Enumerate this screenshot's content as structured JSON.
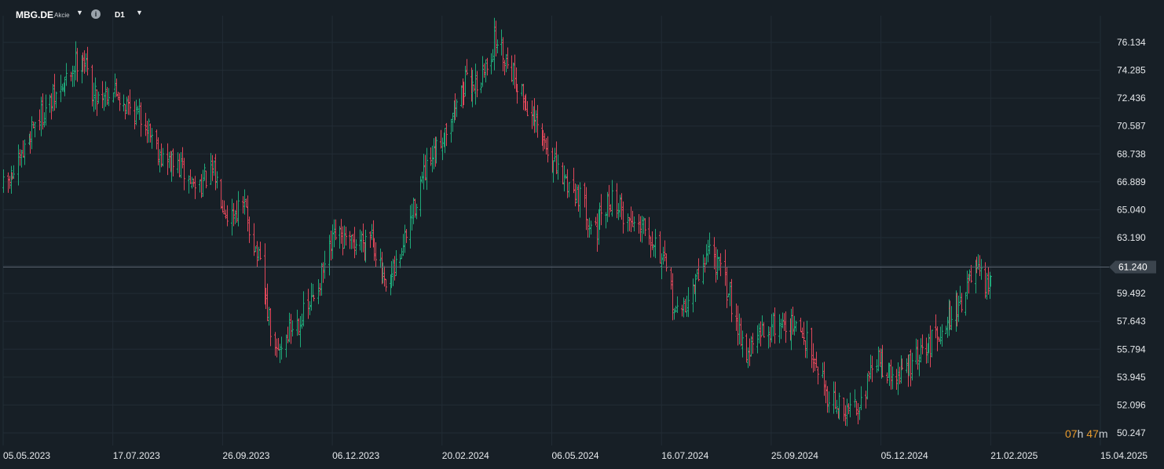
{
  "toolbar": {
    "symbol": "MBG.DE",
    "instrument_type": "Akcie",
    "timeframe": "D1",
    "info_icon": "i"
  },
  "countdown": {
    "hours": "07",
    "hours_unit": "h",
    "minutes": "47",
    "minutes_unit": "m"
  },
  "colors": {
    "background": "#171f26",
    "grid": "#222c35",
    "up": "#1fa97a",
    "down": "#e0475a",
    "price_line": "#5a6470",
    "price_label_bg": "#3b444d",
    "countdown_accent": "#e79a2d"
  },
  "chart_data": {
    "type": "ohlc",
    "title": "",
    "price_axis_labels": [
      "76.134",
      "74.285",
      "72.436",
      "70.587",
      "68.738",
      "66.889",
      "65.040",
      "63.190",
      "61.240",
      "59.492",
      "57.643",
      "55.794",
      "53.945",
      "52.096",
      "50.247"
    ],
    "date_axis_labels": [
      "05.05.2023",
      "17.07.2023",
      "26.09.2023",
      "06.12.2023",
      "20.02.2024",
      "06.05.2024",
      "16.07.2024",
      "25.09.2024",
      "05.12.2024",
      "21.02.2025",
      "15.04.2025"
    ],
    "ylim": [
      50.247,
      76.134
    ],
    "current_price": 61.24,
    "price_line_shown": true,
    "grid": true,
    "closes_path": [
      [
        "2023-05-05",
        66.5
      ],
      [
        "2023-05-15",
        67.8
      ],
      [
        "2023-05-25",
        70.8
      ],
      [
        "2023-06-05",
        72.0
      ],
      [
        "2023-06-15",
        73.4
      ],
      [
        "2023-06-26",
        75.6
      ],
      [
        "2023-07-04",
        72.6
      ],
      [
        "2023-07-17",
        73.0
      ],
      [
        "2023-07-28",
        71.8
      ],
      [
        "2023-08-08",
        70.8
      ],
      [
        "2023-08-18",
        68.4
      ],
      [
        "2023-08-29",
        67.8
      ],
      [
        "2023-09-08",
        66.6
      ],
      [
        "2023-09-20",
        67.5
      ],
      [
        "2023-09-29",
        64.8
      ],
      [
        "2023-10-10",
        65.2
      ],
      [
        "2023-10-20",
        61.2
      ],
      [
        "2023-10-30",
        55.3
      ],
      [
        "2023-11-08",
        57.1
      ],
      [
        "2023-11-20",
        58.4
      ],
      [
        "2023-11-30",
        60.9
      ],
      [
        "2023-12-08",
        63.3
      ],
      [
        "2023-12-18",
        62.6
      ],
      [
        "2024-01-02",
        63.6
      ],
      [
        "2024-01-12",
        59.4
      ],
      [
        "2024-01-24",
        62.6
      ],
      [
        "2024-02-05",
        66.8
      ],
      [
        "2024-02-15",
        68.6
      ],
      [
        "2024-02-26",
        71.4
      ],
      [
        "2024-03-07",
        73.4
      ],
      [
        "2024-03-18",
        73.6
      ],
      [
        "2024-03-28",
        76.4
      ],
      [
        "2024-04-09",
        74.2
      ],
      [
        "2024-04-19",
        71.8
      ],
      [
        "2024-04-30",
        69.6
      ],
      [
        "2024-05-10",
        67.4
      ],
      [
        "2024-05-22",
        66.3
      ],
      [
        "2024-06-03",
        63.6
      ],
      [
        "2024-06-14",
        65.9
      ],
      [
        "2024-06-25",
        64.2
      ],
      [
        "2024-07-05",
        64.4
      ],
      [
        "2024-07-16",
        61.9
      ],
      [
        "2024-07-26",
        57.9
      ],
      [
        "2024-08-06",
        59.8
      ],
      [
        "2024-08-16",
        62.6
      ],
      [
        "2024-08-28",
        59.6
      ],
      [
        "2024-09-09",
        55.4
      ],
      [
        "2024-09-19",
        56.9
      ],
      [
        "2024-09-30",
        57.6
      ],
      [
        "2024-10-10",
        57.2
      ],
      [
        "2024-10-21",
        55.9
      ],
      [
        "2024-11-01",
        52.6
      ],
      [
        "2024-11-12",
        51.5
      ],
      [
        "2024-11-22",
        52.6
      ],
      [
        "2024-12-03",
        55.2
      ],
      [
        "2024-12-13",
        53.8
      ],
      [
        "2024-12-24",
        54.6
      ],
      [
        "2025-01-07",
        55.8
      ],
      [
        "2025-01-17",
        57.4
      ],
      [
        "2025-01-28",
        58.6
      ],
      [
        "2025-02-10",
        61.0
      ],
      [
        "2025-02-19",
        59.6
      ],
      [
        "2025-02-21",
        61.24
      ]
    ]
  }
}
